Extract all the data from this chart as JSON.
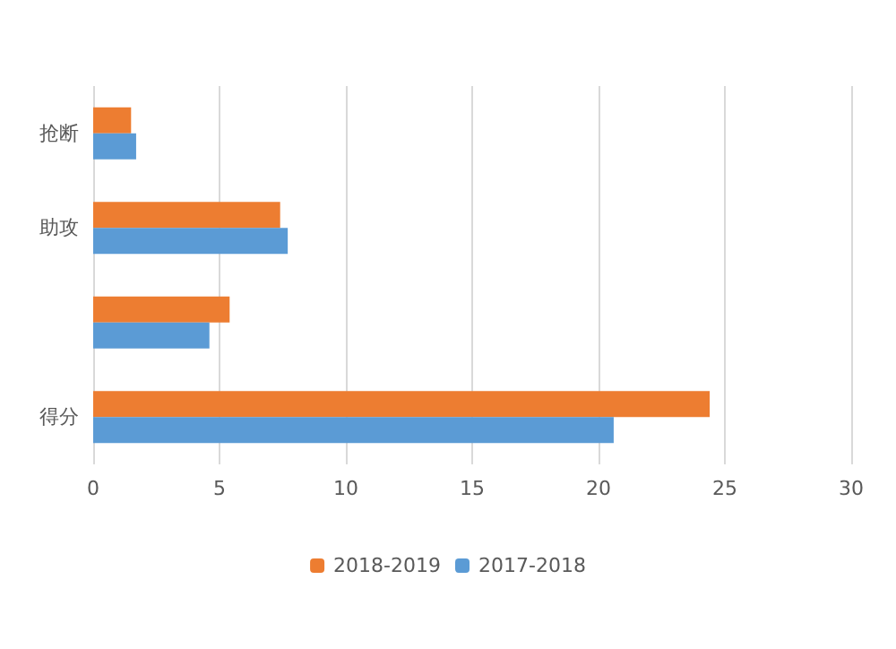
{
  "chart_data": {
    "type": "bar",
    "orientation": "horizontal",
    "categories": [
      "抢断",
      "助攻",
      null,
      "得分"
    ],
    "series": [
      {
        "name": "2018-2019",
        "color": "#ed7d31",
        "values": [
          1.5,
          7.4,
          5.4,
          24.4
        ]
      },
      {
        "name": "2017-2018",
        "color": "#5b9bd5",
        "values": [
          1.7,
          7.7,
          4.6,
          20.6
        ]
      }
    ],
    "xlim": [
      0,
      30
    ],
    "xticks": [
      0,
      5,
      10,
      15,
      20,
      25,
      30
    ],
    "grid": "x",
    "legend": "bottom"
  }
}
